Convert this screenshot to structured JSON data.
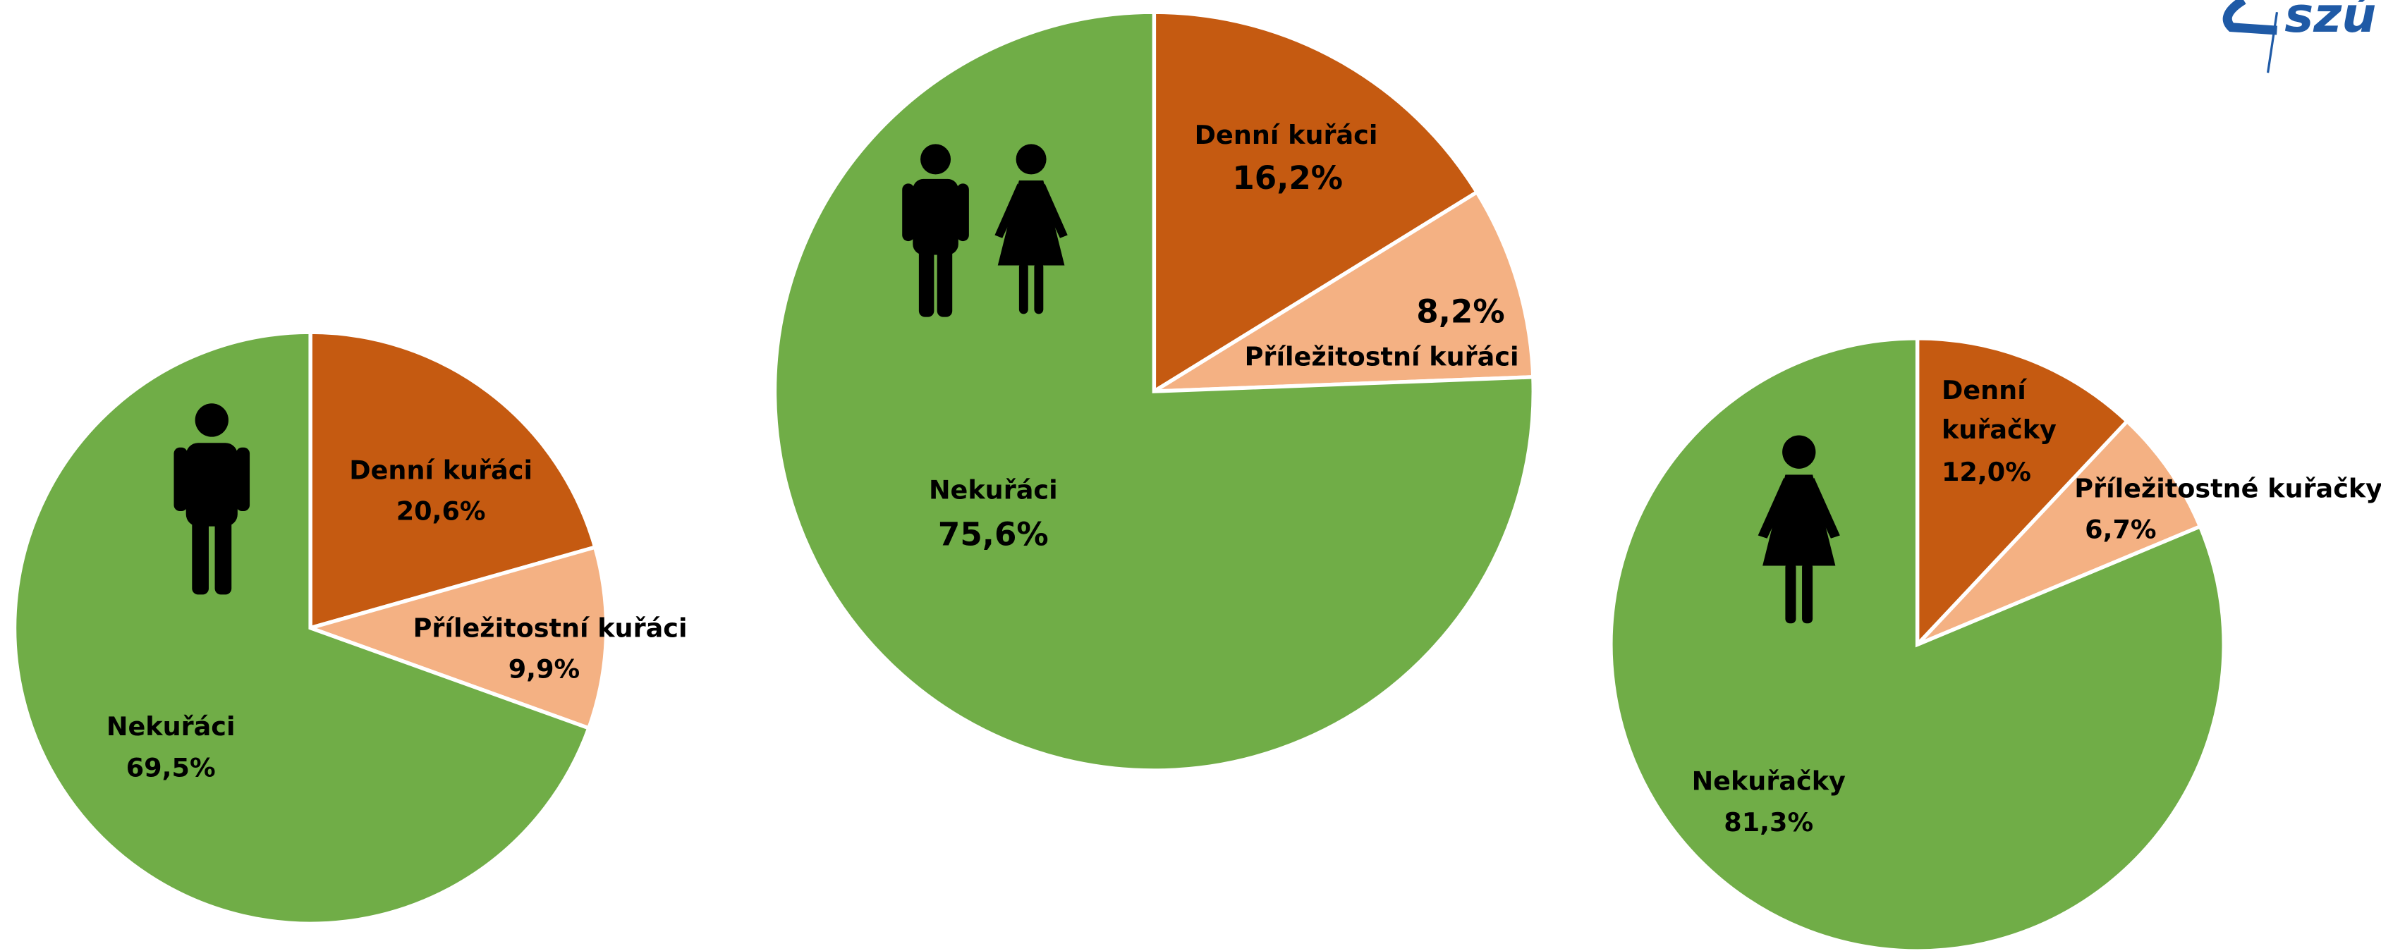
{
  "logo": "szú",
  "chart_data": [
    {
      "type": "pie",
      "categories": [
        "Denní kuřáci",
        "Příležitostní kuřáci",
        "Nekuřáci"
      ],
      "values": [
        20.6,
        9.9,
        69.5
      ],
      "value_labels": [
        "20,6%",
        "9,9%",
        "69,5%"
      ],
      "colors": [
        "#c55a11",
        "#f4b183",
        "#70ad47"
      ]
    },
    {
      "type": "pie",
      "categories": [
        "Denní kuřáci",
        "Příležitostní kuřáci",
        "Nekuřáci"
      ],
      "values": [
        16.2,
        8.2,
        75.6
      ],
      "value_labels": [
        "16,2%",
        "8,2%",
        "75,6%"
      ],
      "colors": [
        "#c55a11",
        "#f4b183",
        "#70ad47"
      ]
    },
    {
      "type": "pie",
      "categories": [
        "Denní kuřačky",
        "Příležitostné kuřačky",
        "Nekuřačky"
      ],
      "values": [
        12.0,
        6.7,
        81.3
      ],
      "value_labels": [
        "12,0%",
        "6,7%",
        "81,3%"
      ],
      "colors": [
        "#c55a11",
        "#f4b183",
        "#70ad47"
      ]
    }
  ]
}
